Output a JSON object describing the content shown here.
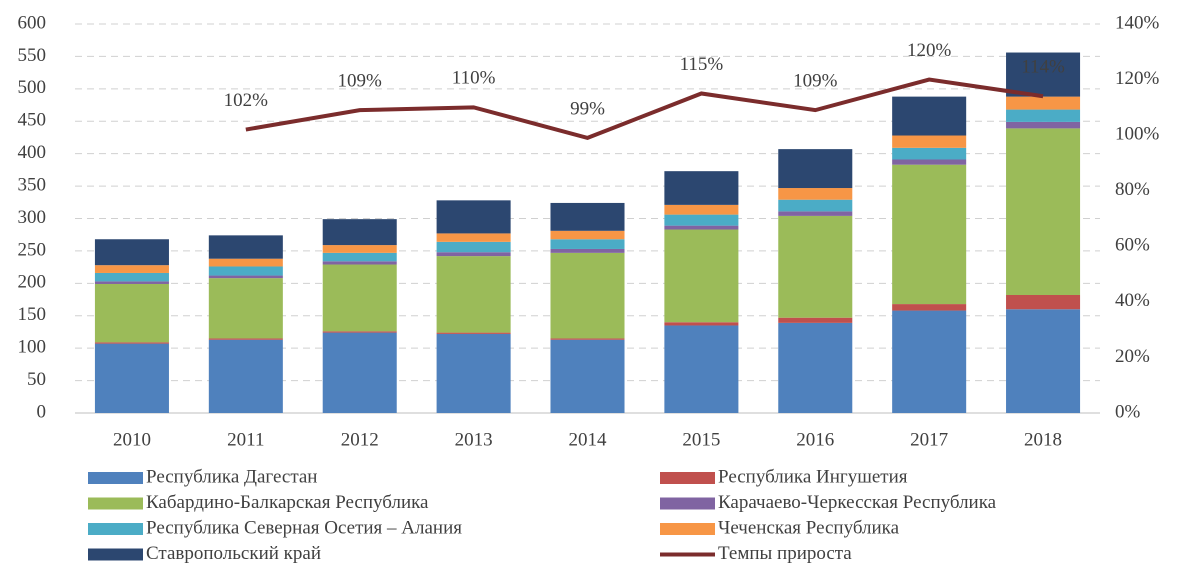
{
  "chart_data": {
    "type": "bar",
    "stacked": true,
    "categories": [
      "2010",
      "2011",
      "2012",
      "2013",
      "2014",
      "2015",
      "2016",
      "2017",
      "2018"
    ],
    "series": [
      {
        "name": "Республика Дагестан",
        "color": "#4f81bd",
        "values": [
          107,
          113,
          124,
          122,
          113,
          135,
          139,
          158,
          160
        ]
      },
      {
        "name": "Республика Ингушетия",
        "color": "#c0504d",
        "values": [
          2,
          2,
          2,
          2,
          2,
          5,
          8,
          10,
          22
        ]
      },
      {
        "name": "Кабардино-Балкарская Республика",
        "color": "#9bbb59",
        "values": [
          90,
          93,
          103,
          118,
          132,
          143,
          157,
          215,
          257
        ]
      },
      {
        "name": "Карачаево-Черкесская Республика",
        "color": "#8064a2",
        "values": [
          4,
          4,
          5,
          6,
          6,
          6,
          7,
          8,
          10
        ]
      },
      {
        "name": "Республика Северная Осетия – Алания",
        "color": "#4bacc6",
        "values": [
          13,
          14,
          13,
          16,
          15,
          17,
          18,
          18,
          19
        ]
      },
      {
        "name": "Чеченская Республика",
        "color": "#f79646",
        "values": [
          12,
          12,
          12,
          13,
          13,
          15,
          18,
          19,
          20
        ]
      },
      {
        "name": "Ставропольский край",
        "color": "#2c4770",
        "values": [
          40,
          36,
          40,
          51,
          43,
          52,
          60,
          60,
          68
        ]
      },
      {
        "name": "Темпы прироста",
        "color": "#7b2c2c",
        "type": "line",
        "axis": "y2",
        "values": [
          null,
          102,
          109,
          110,
          99,
          115,
          109,
          120,
          114
        ],
        "value_labels": [
          null,
          "102%",
          "109%",
          "110%",
          "99%",
          "115%",
          "109%",
          "120%",
          "114%"
        ]
      }
    ],
    "ylim": [
      0,
      600
    ],
    "yticks": [
      0,
      50,
      100,
      150,
      200,
      250,
      300,
      350,
      400,
      450,
      500,
      550,
      600
    ],
    "y2lim": [
      0,
      140
    ],
    "y2ticks": [
      {
        "value": 0,
        "label": "0%"
      },
      {
        "value": 20,
        "label": "20%"
      },
      {
        "value": 40,
        "label": "40%"
      },
      {
        "value": 60,
        "label": "60%"
      },
      {
        "value": 80,
        "label": "80%"
      },
      {
        "value": 100,
        "label": "100%"
      },
      {
        "value": 120,
        "label": "120%"
      },
      {
        "value": 140,
        "label": "140%"
      }
    ],
    "grid": true,
    "legend": "bottom"
  }
}
